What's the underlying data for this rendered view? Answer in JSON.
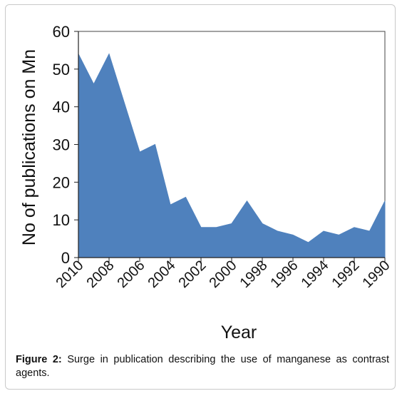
{
  "chart_data": {
    "type": "area",
    "xlabel": "Year",
    "ylabel": "No of publications on Mn",
    "ylim": [
      0,
      60
    ],
    "y_ticks": [
      "0",
      "10",
      "20",
      "30",
      "40",
      "50",
      "60"
    ],
    "x_tick_labels": [
      "2010",
      "2008",
      "2006",
      "2004",
      "2002",
      "2000",
      "1998",
      "1996",
      "1994",
      "1992",
      "1990"
    ],
    "x": [
      2010,
      2009,
      2008,
      2007,
      2006,
      2005,
      2004,
      2003,
      2002,
      2001,
      2000,
      1999,
      1998,
      1997,
      1996,
      1995,
      1994,
      1993,
      1992,
      1991,
      1990
    ],
    "values": [
      54,
      46,
      54,
      41,
      28,
      30,
      14,
      16,
      8,
      8,
      9,
      15,
      9,
      7,
      6,
      4,
      7,
      6,
      8,
      7,
      15
    ],
    "fill_color": "#4f81bd",
    "grid": false,
    "legend": "none"
  },
  "caption": {
    "label": "Figure 2:",
    "text": " Surge in publication describing the use of manganese as contrast agents."
  }
}
